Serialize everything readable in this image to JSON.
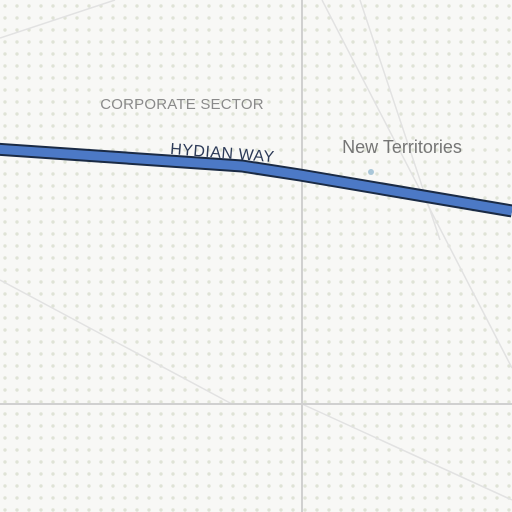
{
  "map": {
    "district_label": "CORPORATE SECTOR",
    "road_label": "HYDIAN WAY",
    "place_label": "New Territories",
    "place_marker_icon": "place-dot-icon"
  },
  "colors": {
    "background": "#f8f8f6",
    "dot_pattern": "#dfe3d6",
    "grid_line": "#d0d0d0",
    "thin_road": "#e2e2e2",
    "main_road_fill": "#4c79c6",
    "main_road_casing": "#1a2a44",
    "district_text": "#8a8a8a",
    "road_text": "#2c3a57",
    "place_text": "#757575",
    "place_marker": "#a9c6d8"
  }
}
